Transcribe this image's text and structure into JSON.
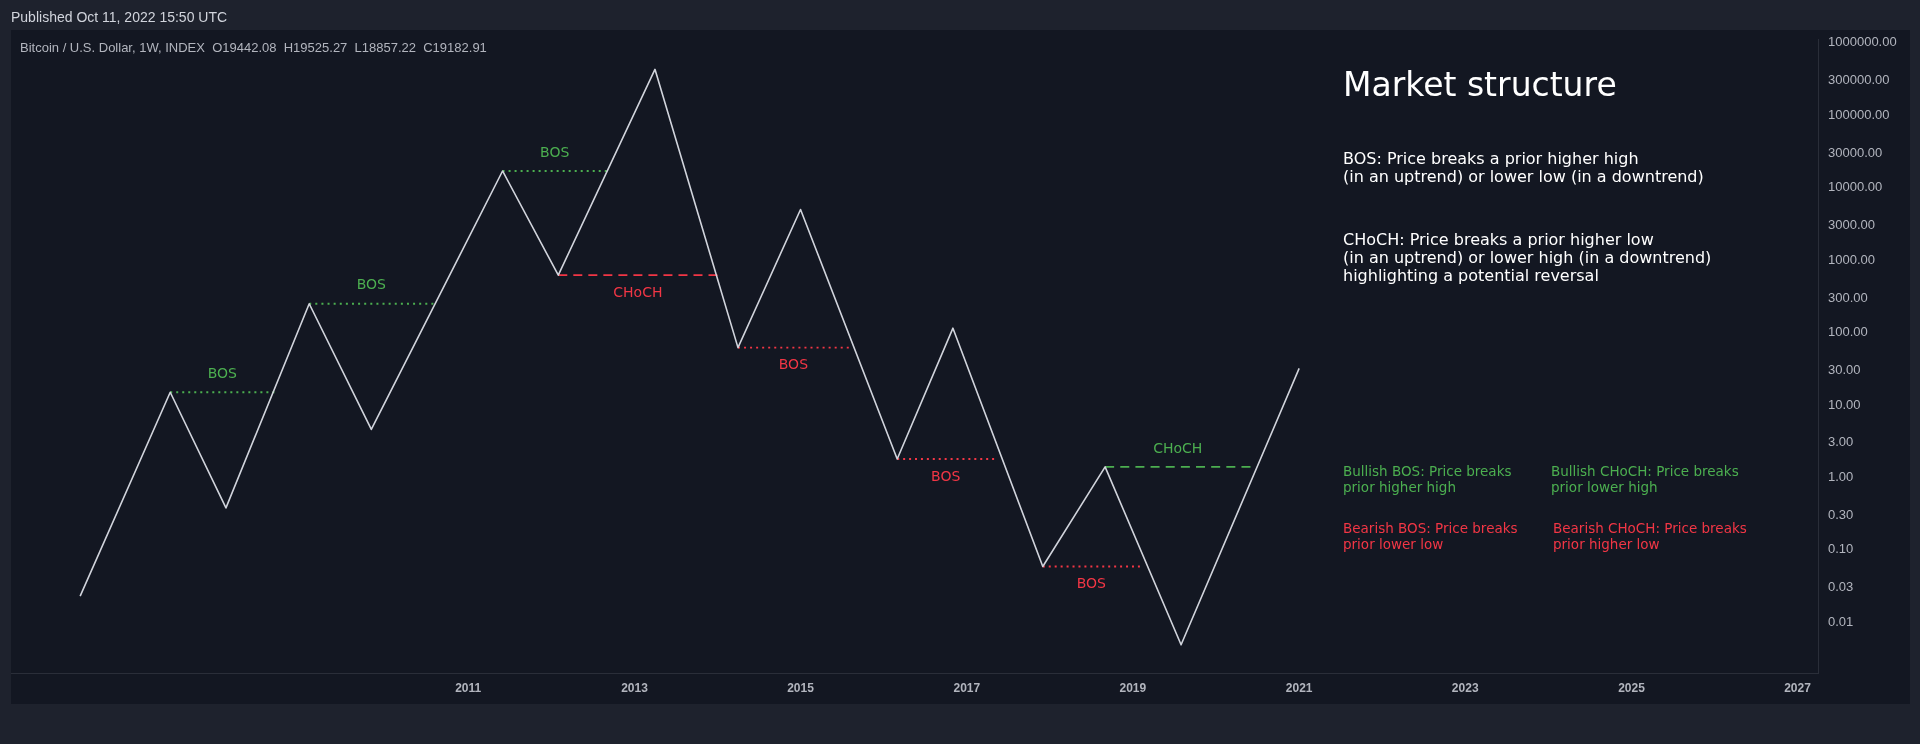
{
  "chart_data": {
    "type": "line",
    "title": "Market structure",
    "subtitle": "Bitcoin / U.S. Dollar, 1W, INDEX  O19442.08  H19525.27  L18857.22  C19182.91",
    "annotations": [
      "Published Oct 11, 2022 15:50 UTC",
      "BOS: Price breaks a prior higher high\n(in an uptrend) or lower low (in a downtrend)",
      "CHoCH: Price breaks a prior higher low\n(in an uptrend) or lower high (in a downtrend)\nhighlighting a potential reversal",
      "Bullish BOS: Price breaks\nprior higher high",
      "Bullish CHoCH: Price breaks\nprior lower high",
      "Bearish BOS: Price breaks\nprior lower low",
      "Bearish CHoCH: Price breaks\nprior higher low"
    ],
    "series": [
      {
        "color": "#d1d4dc",
        "line_style": "solid",
        "x": [
          "2006-05",
          "2007-06",
          "2008-02",
          "2009-02",
          "2009-11",
          "2011-06",
          "2012-02",
          "2013-04",
          "2014-04",
          "2015-01",
          "2016-03",
          "2016-11",
          "2017-12",
          "2018-09",
          "2019-08",
          "2021-01"
        ],
        "values": [
          0.023,
          15,
          0.38,
          250,
          4.6,
          17000,
          620,
          430000,
          62,
          5000,
          1.8,
          115,
          0.059,
          1.4,
          0.0049,
          32
        ]
      },
      {
        "name": "BOS",
        "color": "#4caf50",
        "line_style": "dotted",
        "x": [
          "2007-06",
          "2008-09"
        ],
        "values": [
          15,
          15
        ]
      },
      {
        "name": "BOS",
        "color": "#4caf50",
        "line_style": "dotted",
        "x": [
          "2009-02",
          "2010-08"
        ],
        "values": [
          250,
          250
        ]
      },
      {
        "name": "BOS",
        "color": "#4caf50",
        "line_style": "dotted",
        "x": [
          "2011-06",
          "2012-09"
        ],
        "values": [
          17000,
          17000
        ]
      },
      {
        "name": "CHoCH",
        "color": "#f23645",
        "line_style": "dashed",
        "x": [
          "2012-02",
          "2014-01"
        ],
        "values": [
          620,
          620
        ]
      },
      {
        "name": "BOS",
        "color": "#f23645",
        "line_style": "dotted",
        "x": [
          "2014-04",
          "2015-08"
        ],
        "values": [
          62,
          62
        ]
      },
      {
        "name": "BOS",
        "color": "#f23645",
        "line_style": "dotted",
        "x": [
          "2016-03",
          "2017-05"
        ],
        "values": [
          1.8,
          1.8
        ]
      },
      {
        "name": "BOS",
        "color": "#f23645",
        "line_style": "dotted",
        "x": [
          "2017-12",
          "2019-02"
        ],
        "values": [
          0.059,
          0.059
        ]
      },
      {
        "name": "CHoCH",
        "color": "#4caf50",
        "line_style": "dashed",
        "x": [
          "2018-09",
          "2020-06"
        ],
        "values": [
          1.4,
          1.4
        ]
      }
    ],
    "xlim": [
      "2005-07",
      "2027-04"
    ],
    "xticks": [
      "2011",
      "2013",
      "2015",
      "2017",
      "2019",
      "2021",
      "2023",
      "2025",
      "2027"
    ],
    "ylim": [
      0.002,
      1100000
    ],
    "yticks": [
      0.01,
      0.03,
      {
        "value": 0.1,
        "label": "0.10"
      },
      {
        "value": 0.3,
        "label": "0.30"
      },
      {
        "value": 1,
        "label": "1.00"
      },
      {
        "value": 3,
        "label": "3.00"
      },
      {
        "value": 10,
        "label": "10.00"
      },
      {
        "value": 30,
        "label": "30.00"
      },
      {
        "value": 100,
        "label": "100.00"
      },
      {
        "value": 300,
        "label": "300.00"
      },
      {
        "value": 1000,
        "label": "1000.00"
      },
      {
        "value": 3000,
        "label": "3000.00"
      },
      {
        "value": 10000,
        "label": "10000.00"
      },
      {
        "value": 30000,
        "label": "30000.00"
      },
      {
        "value": 100000,
        "label": "100000.00"
      },
      {
        "value": 300000,
        "label": "300000.00"
      },
      {
        "value": 1000000,
        "label": "1000000.00"
      }
    ],
    "log": "y",
    "grid": false,
    "legend": false,
    "marker": "none"
  }
}
